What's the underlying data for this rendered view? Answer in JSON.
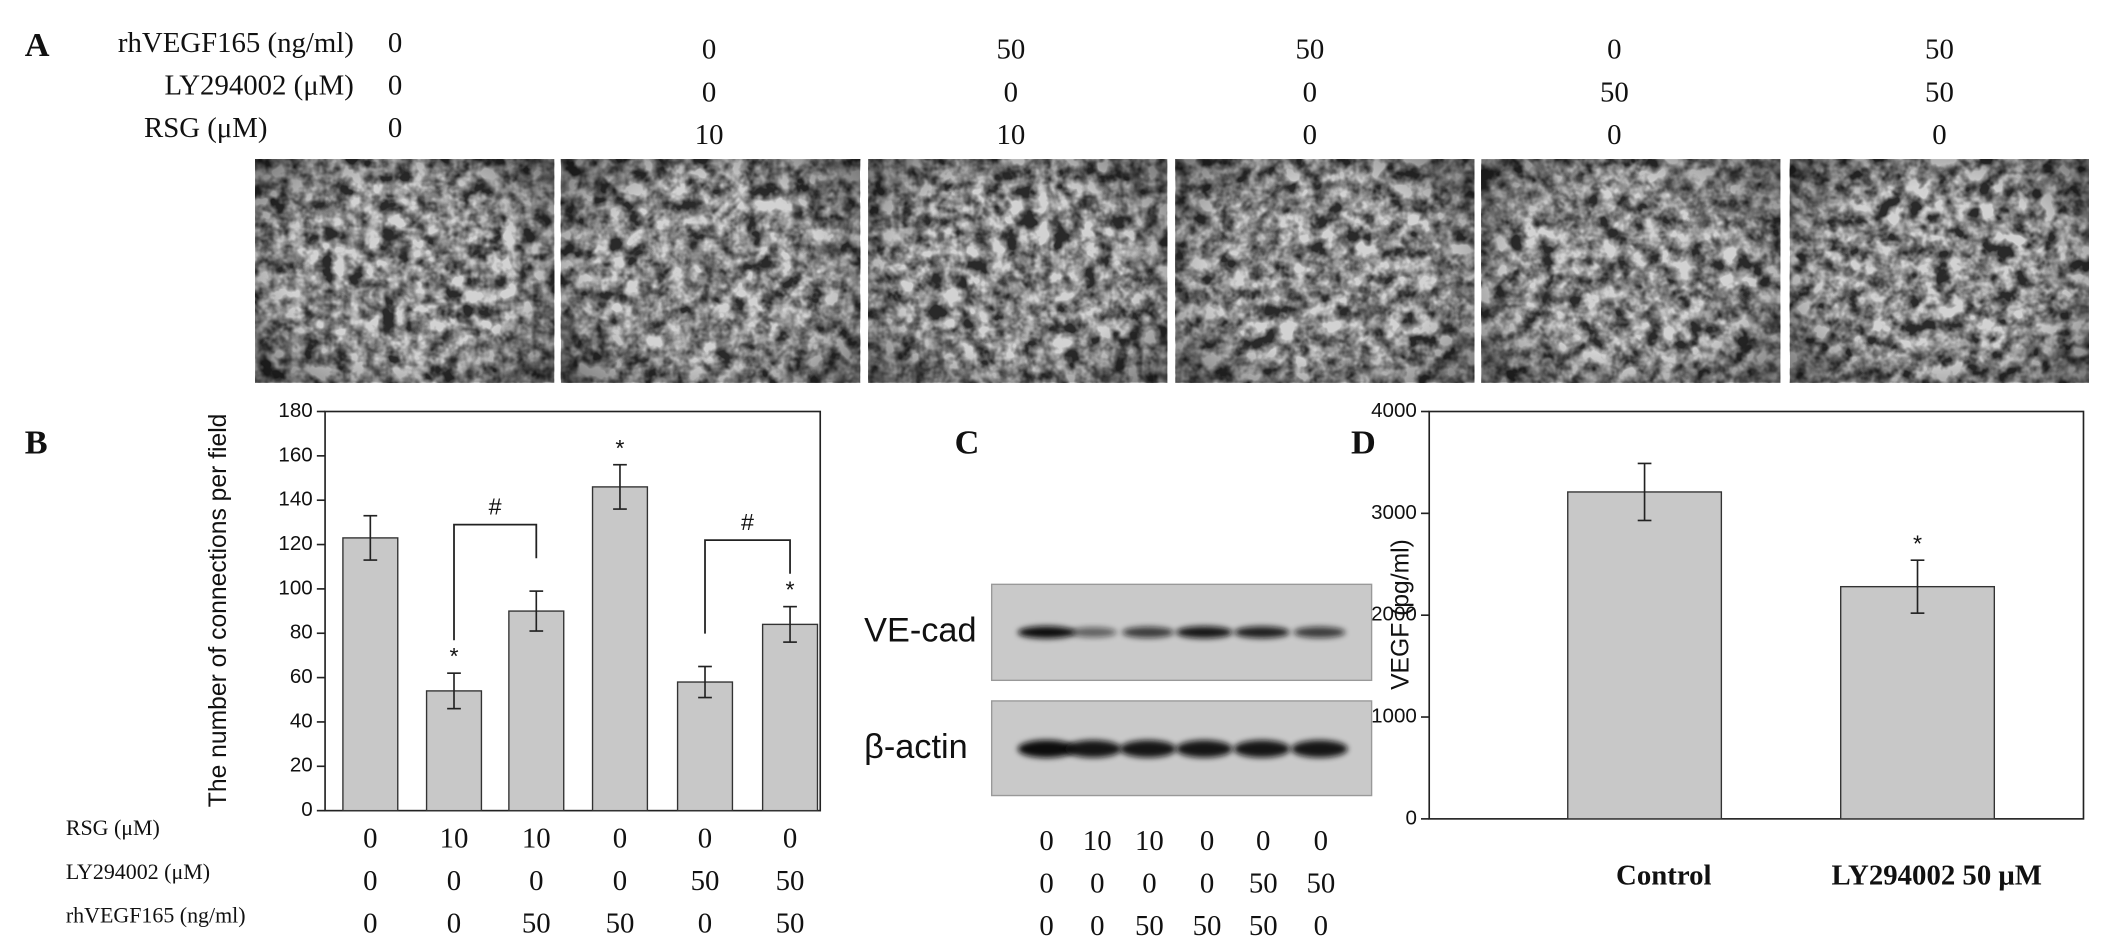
{
  "panel_a": {
    "label": "A",
    "rows": [
      {
        "label": "rhVEGF165 (ng/ml)",
        "values": [
          0,
          0,
          50,
          50,
          0,
          50
        ]
      },
      {
        "label": "LY294002 (μM)",
        "values": [
          0,
          0,
          0,
          0,
          50,
          50
        ]
      },
      {
        "label": "RSG (μM)",
        "values": [
          0,
          10,
          10,
          0,
          0,
          0
        ]
      }
    ]
  },
  "panel_c": {
    "label": "C",
    "blots": [
      "VE-cad",
      "β-actin"
    ],
    "conditions": [
      [
        0,
        10,
        10,
        0,
        0,
        0
      ],
      [
        0,
        0,
        0,
        0,
        50,
        50
      ],
      [
        0,
        0,
        50,
        50,
        50,
        0
      ]
    ]
  },
  "chart_data": [
    {
      "type": "bar",
      "panel_label": "B",
      "y_label": "The number of connections per field",
      "values": [
        123,
        54,
        90,
        146,
        58,
        84
      ],
      "errors": [
        10,
        8,
        9,
        10,
        7,
        8
      ],
      "significance": [
        null,
        "*",
        null,
        "*",
        null,
        "*"
      ],
      "brackets": [
        {
          "label": "#",
          "from": 1,
          "to": 2
        },
        {
          "label": "#",
          "from": 4,
          "to": 5
        }
      ],
      "conditions": [
        {
          "label": "RSG (μM)",
          "values": [
            0,
            10,
            10,
            0,
            0,
            0
          ]
        },
        {
          "label": "LY294002 (μM)",
          "values": [
            0,
            0,
            0,
            0,
            50,
            50
          ]
        },
        {
          "label": "rhVEGF165 (ng/ml)",
          "values": [
            0,
            0,
            50,
            50,
            0,
            50
          ]
        }
      ],
      "color": "#c8c8c8",
      "ylim": [
        0,
        180
      ],
      "yticks": [
        0,
        20,
        40,
        60,
        80,
        100,
        120,
        140,
        160,
        180
      ]
    },
    {
      "type": "bar",
      "panel_label": "D",
      "y_label": "VEGF (pg/ml)",
      "categories": [
        "Control",
        "LY294002 50 μM"
      ],
      "values": [
        3210,
        2280
      ],
      "errors": [
        280,
        260
      ],
      "significance": [
        null,
        "*"
      ],
      "color": "#c8c8c8",
      "ylim": [
        0,
        4000
      ],
      "yticks": [
        0,
        1000,
        2000,
        3000,
        4000
      ]
    }
  ]
}
